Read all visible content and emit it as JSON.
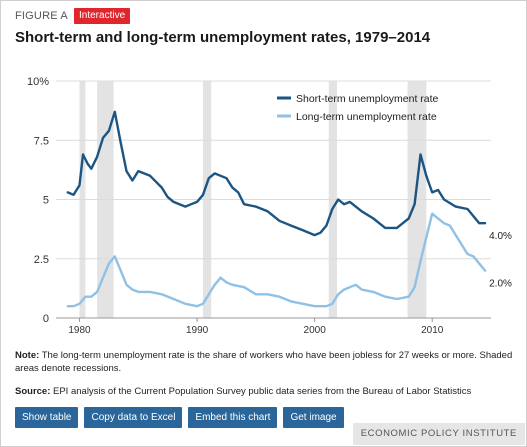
{
  "figure": {
    "label": "FIGURE A",
    "badge": "Interactive",
    "title": "Short-term and long-term unemployment rates, 1979–2014"
  },
  "note": {
    "lead": "Note:",
    "text": " The long-term unemployment rate is the share of workers who have been jobless for 27 weeks or more. Shaded areas denote recessions."
  },
  "source": {
    "lead": "Source:",
    "text": " EPI analysis of the Current Population Survey public data series from the Bureau of Labor Statistics"
  },
  "buttons": [
    "Show table",
    "Copy data to Excel",
    "Embed this chart",
    "Get image"
  ],
  "brand": "ECONOMIC POLICY INSTITUTE",
  "colors": {
    "short_term": "#1d5582",
    "long_term": "#8fc1e6",
    "recession": "#e3e3e3",
    "badge": "#e0262c",
    "button": "#2a6699"
  },
  "chart_data": {
    "type": "line",
    "xlim": [
      1978,
      2015
    ],
    "ylim": [
      0,
      10
    ],
    "y_ticks": [
      0,
      2.5,
      5,
      7.5,
      10
    ],
    "y_tick_labels": [
      "0",
      "2.5",
      "5",
      "7.5",
      "10%"
    ],
    "x_ticks": [
      1980,
      1990,
      2000,
      2010
    ],
    "x_tick_labels": [
      "1980",
      "1990",
      "2000",
      "2010"
    ],
    "grid": true,
    "legend": "top-right",
    "recessions": [
      [
        1980.0,
        1980.5
      ],
      [
        1981.5,
        1982.9
      ],
      [
        1990.5,
        1991.2
      ],
      [
        2001.2,
        2001.9
      ],
      [
        2007.9,
        2009.5
      ]
    ],
    "series": [
      {
        "name": "Short-term unemployment rate",
        "end_label": "4.0%",
        "x": [
          1979.0,
          1979.5,
          1980.0,
          1980.3,
          1980.7,
          1981.0,
          1981.5,
          1982.0,
          1982.5,
          1983.0,
          1983.5,
          1984.0,
          1984.5,
          1985.0,
          1986.0,
          1987.0,
          1987.5,
          1988.0,
          1989.0,
          1989.5,
          1990.0,
          1990.5,
          1991.0,
          1991.5,
          1992.0,
          1992.5,
          1993.0,
          1993.5,
          1994.0,
          1995.0,
          1996.0,
          1997.0,
          1998.0,
          1999.0,
          2000.0,
          2000.5,
          2001.0,
          2001.5,
          2002.0,
          2002.5,
          2003.0,
          2004.0,
          2005.0,
          2006.0,
          2007.0,
          2007.5,
          2008.0,
          2008.5,
          2009.0,
          2009.5,
          2010.0,
          2010.5,
          2011.0,
          2012.0,
          2013.0,
          2013.5,
          2014.0,
          2014.5
        ],
        "values": [
          5.3,
          5.2,
          5.6,
          6.9,
          6.5,
          6.3,
          6.8,
          7.6,
          7.9,
          8.7,
          7.4,
          6.2,
          5.8,
          6.2,
          6.0,
          5.5,
          5.1,
          4.9,
          4.7,
          4.8,
          4.9,
          5.2,
          5.9,
          6.1,
          6.0,
          5.9,
          5.5,
          5.3,
          4.8,
          4.7,
          4.5,
          4.1,
          3.9,
          3.7,
          3.5,
          3.6,
          3.9,
          4.6,
          5.0,
          4.8,
          4.9,
          4.5,
          4.2,
          3.8,
          3.8,
          4.0,
          4.2,
          4.8,
          6.9,
          6.0,
          5.3,
          5.4,
          5.0,
          4.7,
          4.6,
          4.3,
          4.0,
          4.0
        ]
      },
      {
        "name": "Long-term unemployment rate",
        "end_label": "2.0%",
        "x": [
          1979.0,
          1979.5,
          1980.0,
          1980.5,
          1981.0,
          1981.5,
          1982.0,
          1982.5,
          1983.0,
          1983.5,
          1984.0,
          1984.5,
          1985.0,
          1986.0,
          1987.0,
          1988.0,
          1989.0,
          1990.0,
          1990.5,
          1991.0,
          1991.5,
          1992.0,
          1992.5,
          1993.0,
          1994.0,
          1995.0,
          1996.0,
          1997.0,
          1998.0,
          1999.0,
          2000.0,
          2001.0,
          2001.5,
          2002.0,
          2002.5,
          2003.0,
          2003.5,
          2004.0,
          2005.0,
          2006.0,
          2007.0,
          2008.0,
          2008.5,
          2009.0,
          2009.5,
          2010.0,
          2010.5,
          2011.0,
          2011.5,
          2012.0,
          2013.0,
          2013.5,
          2014.0,
          2014.5
        ],
        "values": [
          0.5,
          0.5,
          0.6,
          0.9,
          0.9,
          1.1,
          1.7,
          2.3,
          2.6,
          2.0,
          1.4,
          1.2,
          1.1,
          1.1,
          1.0,
          0.8,
          0.6,
          0.5,
          0.6,
          1.0,
          1.4,
          1.7,
          1.5,
          1.4,
          1.3,
          1.0,
          1.0,
          0.9,
          0.7,
          0.6,
          0.5,
          0.5,
          0.6,
          1.0,
          1.2,
          1.3,
          1.4,
          1.2,
          1.1,
          0.9,
          0.8,
          0.9,
          1.3,
          2.4,
          3.4,
          4.4,
          4.2,
          4.0,
          3.9,
          3.5,
          2.7,
          2.6,
          2.3,
          2.0
        ]
      }
    ]
  }
}
